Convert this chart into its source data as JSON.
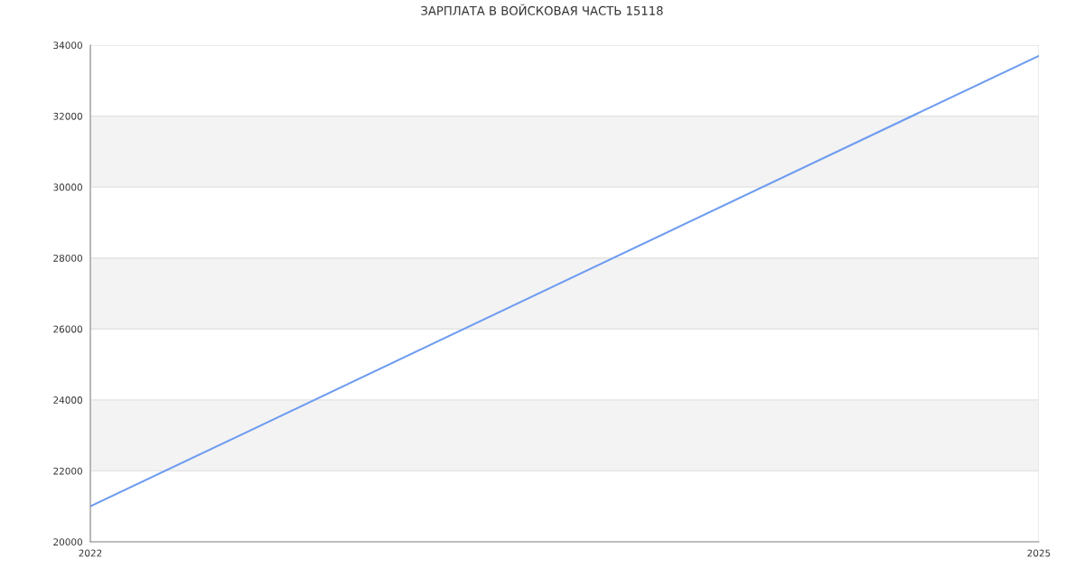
{
  "chart_data": {
    "type": "line",
    "title": "ЗАРПЛАТА В ВОЙСКОВАЯ ЧАСТЬ 15118",
    "x": [
      "2022",
      "2025"
    ],
    "series": [
      {
        "color": "#6f9cf0",
        "values": [
          21000,
          33700
        ]
      }
    ],
    "xlim": [
      "2022",
      "2025"
    ],
    "xticks": [
      "2022",
      "2025"
    ],
    "ylim": [
      20000,
      34000
    ],
    "yticks": [
      20000,
      22000,
      24000,
      26000,
      28000,
      30000,
      32000,
      34000
    ],
    "bands": [
      {
        "axis": "y",
        "from": 22000,
        "to": 24000,
        "color": "#f3f3f3"
      },
      {
        "axis": "y",
        "from": 26000,
        "to": 28000,
        "color": "#f3f3f3"
      },
      {
        "axis": "y",
        "from": 30000,
        "to": 32000,
        "color": "#f3f3f3"
      }
    ],
    "grid": true,
    "marker": "none",
    "line_style": "solid"
  }
}
